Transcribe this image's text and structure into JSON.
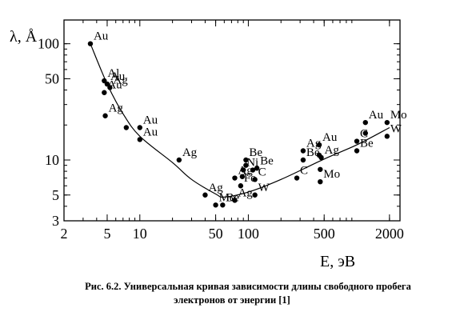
{
  "chart_data": {
    "type": "scatter",
    "xscale": "log",
    "yscale": "log",
    "xlim": [
      2,
      2500
    ],
    "ylim": [
      3,
      160
    ],
    "xlabel": "E, эВ",
    "ylabel": "λ, Å",
    "xticks": [
      {
        "value": 2,
        "label": "2"
      },
      {
        "value": 5,
        "label": "5"
      },
      {
        "value": 10,
        "label": "10"
      },
      {
        "value": 50,
        "label": "50"
      },
      {
        "value": 100,
        "label": "100"
      },
      {
        "value": 500,
        "label": "500"
      },
      {
        "value": 2000,
        "label": "2000"
      }
    ],
    "yticks": [
      {
        "value": 3,
        "label": "3"
      },
      {
        "value": 5,
        "label": "5"
      },
      {
        "value": 10,
        "label": "10"
      },
      {
        "value": 50,
        "label": "50"
      },
      {
        "value": 100,
        "label": "100"
      }
    ],
    "points": [
      {
        "x": 3.5,
        "y": 100,
        "label": "Au"
      },
      {
        "x": 4.7,
        "y": 48,
        "label": "Al"
      },
      {
        "x": 5.0,
        "y": 45,
        "label": "Au"
      },
      {
        "x": 5.3,
        "y": 42,
        "label": "Ag"
      },
      {
        "x": 4.7,
        "y": 38,
        "label": "Au"
      },
      {
        "x": 4.8,
        "y": 24,
        "label": "Ag"
      },
      {
        "x": 7.5,
        "y": 19,
        "label": ""
      },
      {
        "x": 10.0,
        "y": 19,
        "label": "Au"
      },
      {
        "x": 10.0,
        "y": 15,
        "label": "Au"
      },
      {
        "x": 23,
        "y": 10,
        "label": "Ag"
      },
      {
        "x": 40,
        "y": 5,
        "label": "Ag"
      },
      {
        "x": 50,
        "y": 4.1,
        "label": "Mo"
      },
      {
        "x": 58,
        "y": 4.1,
        "label": "Be"
      },
      {
        "x": 75,
        "y": 4.5,
        "label": "Ag"
      },
      {
        "x": 75,
        "y": 7.0,
        "label": "Ag"
      },
      {
        "x": 85,
        "y": 6.0,
        "label": "Fe"
      },
      {
        "x": 88,
        "y": 7.2,
        "label": ""
      },
      {
        "x": 95,
        "y": 10,
        "label": "Be"
      },
      {
        "x": 95,
        "y": 9,
        "label": ""
      },
      {
        "x": 90,
        "y": 8.2,
        "label": "Ni"
      },
      {
        "x": 110,
        "y": 8.2,
        "label": ""
      },
      {
        "x": 115,
        "y": 6.8,
        "label": "C"
      },
      {
        "x": 120,
        "y": 8.5,
        "label": "Be"
      },
      {
        "x": 115,
        "y": 5.0,
        "label": "W"
      },
      {
        "x": 280,
        "y": 7.0,
        "label": "C"
      },
      {
        "x": 320,
        "y": 12.0,
        "label": "Ag"
      },
      {
        "x": 320,
        "y": 10.0,
        "label": "Be"
      },
      {
        "x": 450,
        "y": 13.5,
        "label": "Au"
      },
      {
        "x": 450,
        "y": 11.0,
        "label": ""
      },
      {
        "x": 470,
        "y": 10.5,
        "label": "Ag"
      },
      {
        "x": 460,
        "y": 8.3,
        "label": ""
      },
      {
        "x": 460,
        "y": 6.5,
        "label": "Mo"
      },
      {
        "x": 1000,
        "y": 14.5,
        "label": "C"
      },
      {
        "x": 1000,
        "y": 12.0,
        "label": "Be"
      },
      {
        "x": 1200,
        "y": 21,
        "label": "Au"
      },
      {
        "x": 1200,
        "y": 17,
        "label": ""
      },
      {
        "x": 1900,
        "y": 21,
        "label": "Mo"
      },
      {
        "x": 1900,
        "y": 16,
        "label": "W"
      }
    ],
    "curve": [
      {
        "x": 3.5,
        "y": 100
      },
      {
        "x": 5,
        "y": 45
      },
      {
        "x": 7,
        "y": 25
      },
      {
        "x": 10,
        "y": 16
      },
      {
        "x": 20,
        "y": 9.5
      },
      {
        "x": 30,
        "y": 6.8
      },
      {
        "x": 50,
        "y": 5.1
      },
      {
        "x": 60,
        "y": 4.8
      },
      {
        "x": 100,
        "y": 5.3
      },
      {
        "x": 200,
        "y": 6.8
      },
      {
        "x": 500,
        "y": 10.2
      },
      {
        "x": 1000,
        "y": 13.5
      },
      {
        "x": 2000,
        "y": 19
      }
    ]
  },
  "caption": {
    "line1": "Рис. 6.2. Универсальная кривая зависимости длины свободного пробега",
    "line2": "электронов от энергии [1]"
  }
}
